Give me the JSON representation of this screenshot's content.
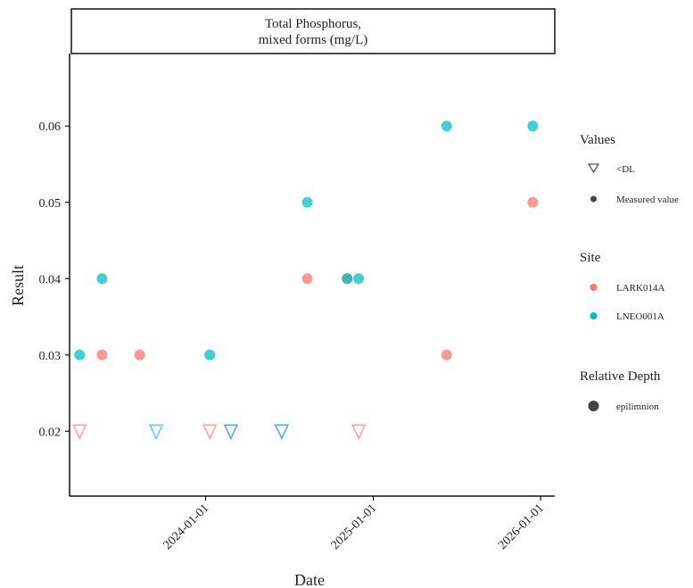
{
  "chart_data": {
    "type": "scatter",
    "facet_title_lines": [
      "Total Phosphorus,",
      "mixed forms (mg/L)"
    ],
    "xlabel": "Date",
    "ylabel": "Result",
    "xlim": [
      "2023-03-10",
      "2026-02-01"
    ],
    "ylim": [
      0.0115,
      0.0695
    ],
    "x_ticks": [
      "2024-01-01",
      "2025-01-01",
      "2026-01-01"
    ],
    "y_ticks": [
      0.02,
      0.03,
      0.04,
      0.05,
      0.06
    ],
    "y_tick_labels": [
      "0.02",
      "0.03",
      "0.04",
      "0.05",
      "0.06"
    ],
    "colors": {
      "LARK014A": "#F8766D",
      "LNEO001A": "#00BFC4",
      "overlap": "#4f8d87",
      "legend_neutral": "#555555"
    },
    "series": [
      {
        "name": "LARK014A",
        "points": [
          {
            "x": "2023-05-20",
            "y": 0.03,
            "value_type": "Measured value"
          },
          {
            "x": "2023-08-10",
            "y": 0.03,
            "value_type": "Measured value"
          },
          {
            "x": "2024-08-10",
            "y": 0.04,
            "value_type": "Measured value"
          },
          {
            "x": "2025-06-10",
            "y": 0.03,
            "value_type": "Measured value"
          },
          {
            "x": "2025-12-15",
            "y": 0.05,
            "value_type": "Measured value"
          },
          {
            "x": "2024-11-05",
            "y": 0.04,
            "value_type": "Measured value"
          },
          {
            "x": "2023-04-01",
            "y": 0.02,
            "value_type": "<DL"
          },
          {
            "x": "2024-01-10",
            "y": 0.02,
            "value_type": "<DL"
          },
          {
            "x": "2024-02-25",
            "y": 0.02,
            "value_type": "<DL"
          },
          {
            "x": "2024-06-15",
            "y": 0.02,
            "value_type": "<DL"
          },
          {
            "x": "2024-11-30",
            "y": 0.02,
            "value_type": "<DL"
          }
        ]
      },
      {
        "name": "LNEO001A",
        "points": [
          {
            "x": "2023-04-01",
            "y": 0.03,
            "value_type": "Measured value"
          },
          {
            "x": "2023-05-20",
            "y": 0.04,
            "value_type": "Measured value"
          },
          {
            "x": "2024-01-10",
            "y": 0.03,
            "value_type": "Measured value"
          },
          {
            "x": "2024-08-10",
            "y": 0.05,
            "value_type": "Measured value"
          },
          {
            "x": "2024-11-30",
            "y": 0.04,
            "value_type": "Measured value"
          },
          {
            "x": "2024-11-05",
            "y": 0.04,
            "value_type": "Measured value"
          },
          {
            "x": "2025-06-10",
            "y": 0.06,
            "value_type": "Measured value"
          },
          {
            "x": "2025-12-15",
            "y": 0.06,
            "value_type": "Measured value"
          },
          {
            "x": "2023-09-15",
            "y": 0.02,
            "value_type": "<DL"
          },
          {
            "x": "2024-02-25",
            "y": 0.02,
            "value_type": "<DL"
          },
          {
            "x": "2024-06-15",
            "y": 0.02,
            "value_type": "<DL"
          }
        ]
      }
    ],
    "legend": {
      "position": "right",
      "groups": [
        {
          "title": "Values",
          "entries": [
            {
              "label": "<DL",
              "shape": "triangle-down-open"
            },
            {
              "label": "Measured value",
              "shape": "circle-filled"
            }
          ]
        },
        {
          "title": "Site",
          "entries": [
            {
              "label": "LARK014A",
              "shape": "circle-filled",
              "color_key": "LARK014A"
            },
            {
              "label": "LNEO001A",
              "shape": "circle-filled",
              "color_key": "LNEO001A"
            }
          ]
        },
        {
          "title": "Relative Depth",
          "entries": [
            {
              "label": "epilimnion",
              "shape": "circle-large"
            }
          ]
        }
      ]
    },
    "grid": false
  }
}
